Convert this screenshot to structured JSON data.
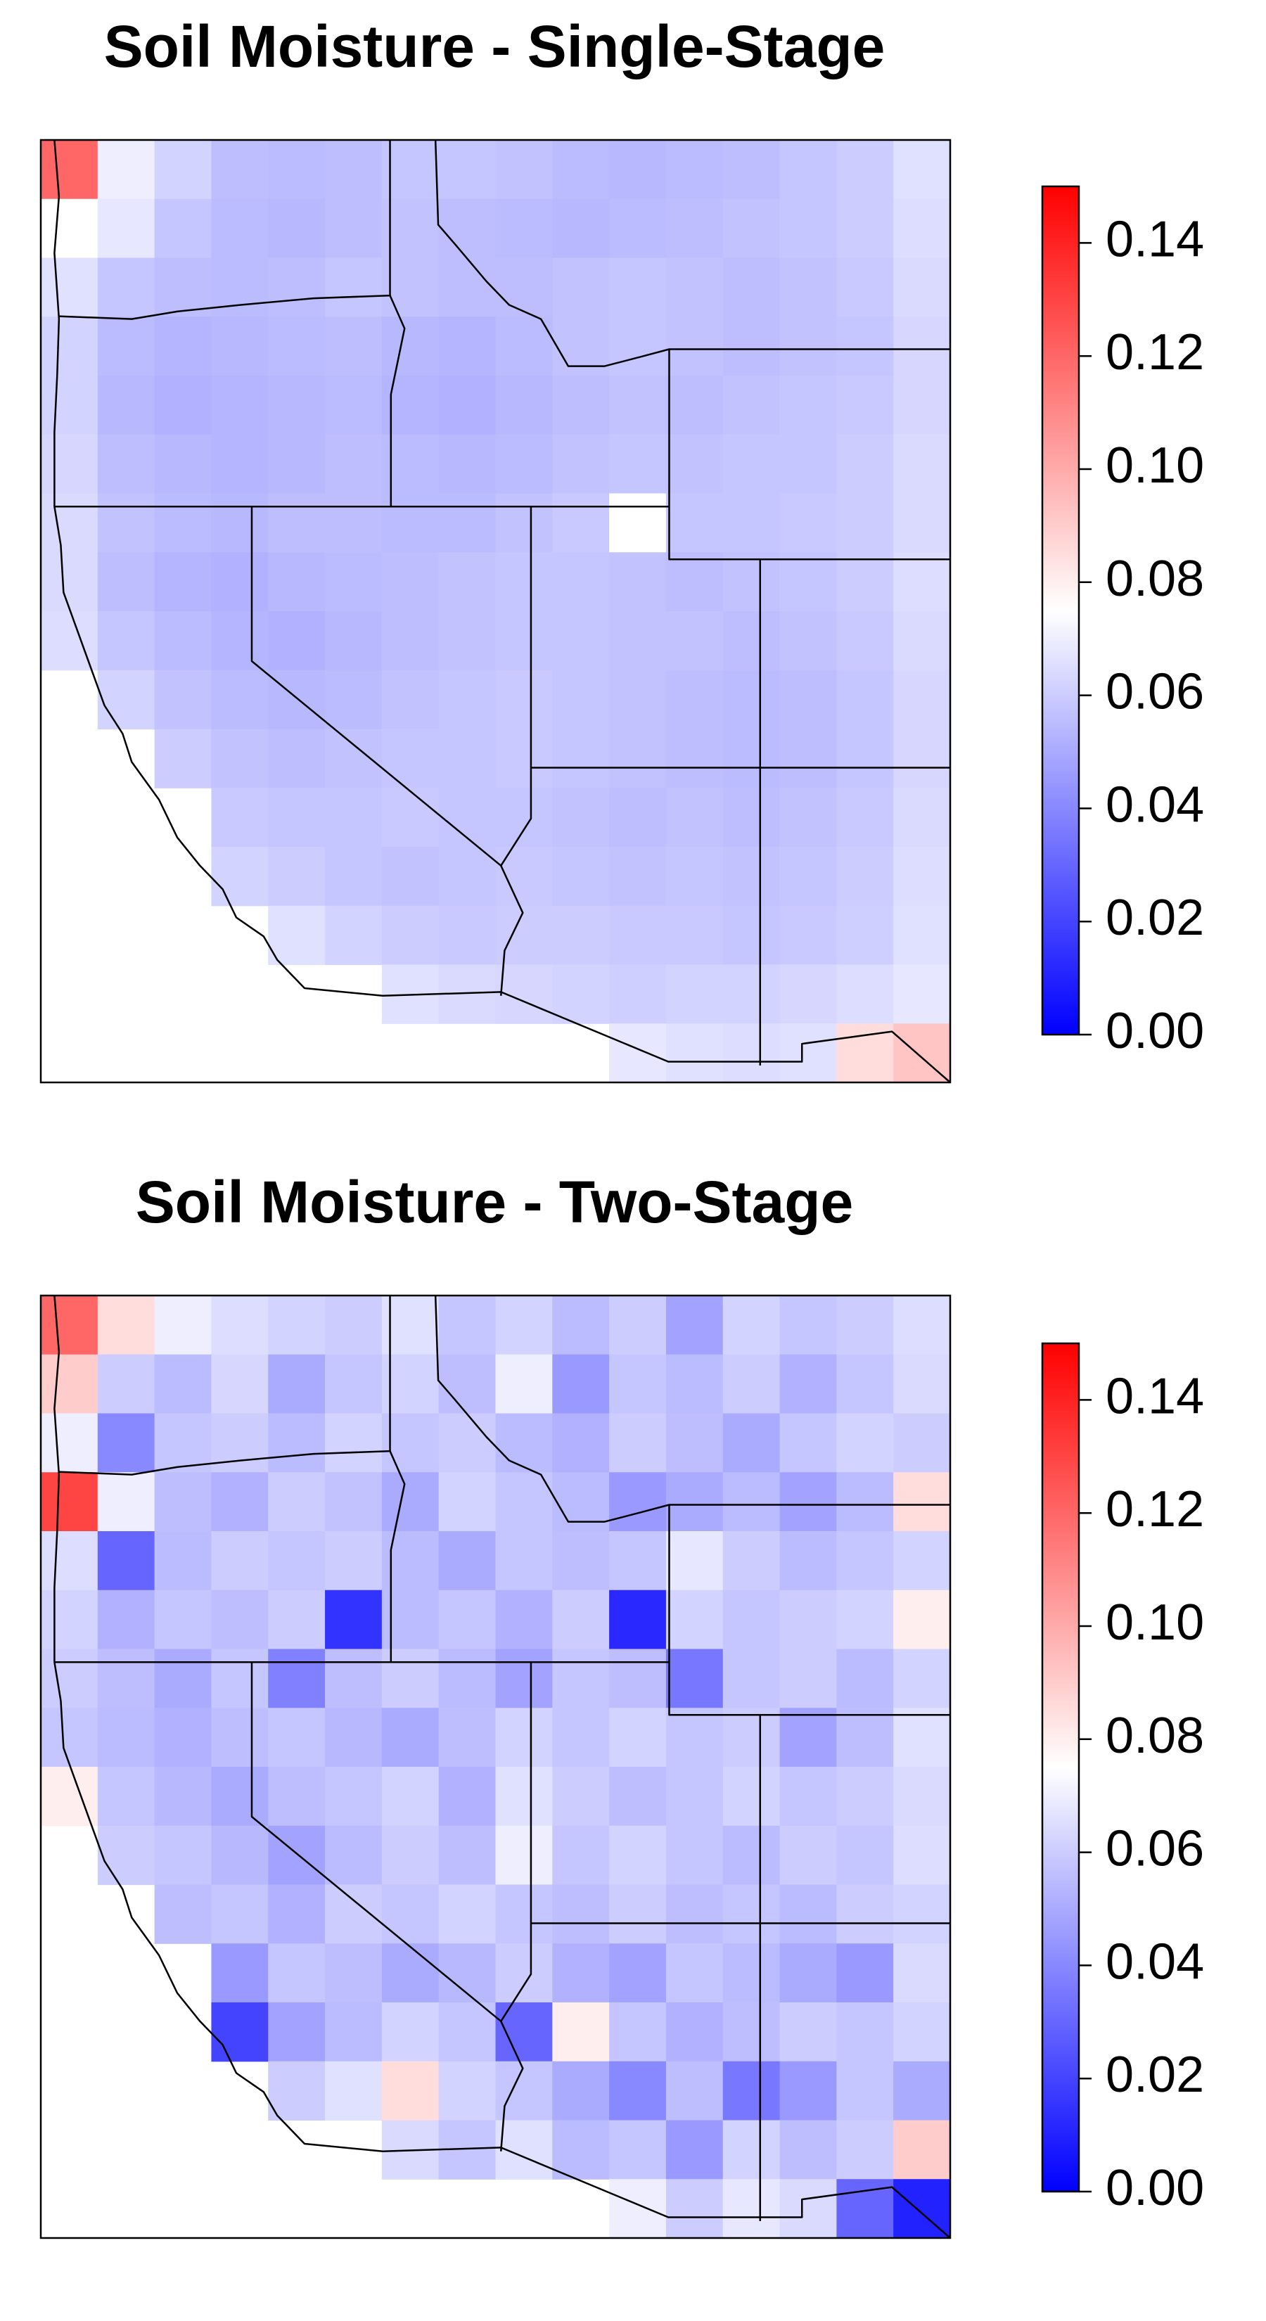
{
  "chart_data": [
    {
      "type": "heatmap",
      "title": "Soil Moisture - Single-Stage",
      "zlim": [
        0,
        0.15
      ],
      "colorscale": [
        "#0000ff",
        "#ffffff",
        "#ff0000"
      ],
      "zticks": [
        {
          "value": 0,
          "label": "0.00"
        },
        {
          "value": 0.02,
          "label": "0.02"
        },
        {
          "value": 0.04,
          "label": "0.04"
        },
        {
          "value": 0.06,
          "label": "0.06"
        },
        {
          "value": 0.08,
          "label": "0.08"
        },
        {
          "value": 0.1,
          "label": "0.10"
        },
        {
          "value": 0.12,
          "label": "0.12"
        },
        {
          "value": 0.14,
          "label": "0.14"
        }
      ],
      "z": [
        [
          0.12,
          0.07,
          0.062,
          0.056,
          0.055,
          0.056,
          0.058,
          0.058,
          0.057,
          0.055,
          0.054,
          0.055,
          0.056,
          0.058,
          0.06,
          0.066
        ],
        [
          0.075,
          0.068,
          0.058,
          0.055,
          0.054,
          0.056,
          0.057,
          0.056,
          0.055,
          0.054,
          0.055,
          0.056,
          0.057,
          0.058,
          0.06,
          0.065
        ],
        [
          0.066,
          0.058,
          0.056,
          0.055,
          0.056,
          0.058,
          0.057,
          0.056,
          0.056,
          0.057,
          0.058,
          0.057,
          0.056,
          0.057,
          0.059,
          0.064
        ],
        [
          0.062,
          0.055,
          0.053,
          0.054,
          0.055,
          0.056,
          0.054,
          0.053,
          0.055,
          0.057,
          0.058,
          0.057,
          0.056,
          0.057,
          0.058,
          0.063
        ],
        [
          0.062,
          0.054,
          0.052,
          0.053,
          0.054,
          0.055,
          0.053,
          0.052,
          0.054,
          0.056,
          0.057,
          0.056,
          0.057,
          0.058,
          0.059,
          0.063
        ],
        [
          0.063,
          0.056,
          0.054,
          0.053,
          0.054,
          0.056,
          0.055,
          0.054,
          0.055,
          0.057,
          0.058,
          0.057,
          0.058,
          0.058,
          0.06,
          0.064
        ],
        [
          0.064,
          0.057,
          0.055,
          0.054,
          0.056,
          0.056,
          0.055,
          0.055,
          0.057,
          0.059,
          0.075,
          0.058,
          0.058,
          0.059,
          0.06,
          0.064
        ],
        [
          0.064,
          0.056,
          0.053,
          0.052,
          0.054,
          0.055,
          0.056,
          0.057,
          0.058,
          0.058,
          0.057,
          0.056,
          0.057,
          0.058,
          0.06,
          0.065
        ],
        [
          0.065,
          0.058,
          0.055,
          0.053,
          0.052,
          0.054,
          0.056,
          0.057,
          0.058,
          0.058,
          0.057,
          0.057,
          0.056,
          0.057,
          0.059,
          0.064
        ],
        [
          null,
          0.062,
          0.057,
          0.055,
          0.054,
          0.055,
          0.057,
          0.058,
          0.059,
          0.058,
          0.057,
          0.056,
          0.055,
          0.056,
          0.058,
          0.063
        ],
        [
          null,
          null,
          0.06,
          0.057,
          0.056,
          0.057,
          0.058,
          0.058,
          0.059,
          0.058,
          0.057,
          0.056,
          0.055,
          0.056,
          0.058,
          0.063
        ],
        [
          null,
          null,
          null,
          0.059,
          0.058,
          0.058,
          0.059,
          0.058,
          0.058,
          0.057,
          0.056,
          0.057,
          0.056,
          0.057,
          0.059,
          0.064
        ],
        [
          null,
          null,
          null,
          0.062,
          0.06,
          0.058,
          0.057,
          0.058,
          0.059,
          0.058,
          0.057,
          0.058,
          0.057,
          0.058,
          0.06,
          0.065
        ],
        [
          null,
          null,
          null,
          null,
          0.066,
          0.062,
          0.06,
          0.059,
          0.06,
          0.06,
          0.059,
          0.059,
          0.058,
          0.059,
          0.061,
          0.066
        ],
        [
          null,
          null,
          null,
          null,
          null,
          null,
          0.066,
          0.064,
          0.063,
          0.062,
          0.061,
          0.062,
          0.062,
          0.063,
          0.065,
          0.068
        ],
        [
          null,
          null,
          null,
          null,
          null,
          null,
          null,
          null,
          null,
          null,
          0.068,
          0.066,
          0.065,
          0.066,
          0.085,
          0.092
        ]
      ]
    },
    {
      "type": "heatmap",
      "title": "Soil Moisture - Two-Stage",
      "zlim": [
        0,
        0.15
      ],
      "colorscale": [
        "#0000ff",
        "#ffffff",
        "#ff0000"
      ],
      "zticks": [
        {
          "value": 0,
          "label": "0.00"
        },
        {
          "value": 0.02,
          "label": "0.02"
        },
        {
          "value": 0.04,
          "label": "0.04"
        },
        {
          "value": 0.06,
          "label": "0.06"
        },
        {
          "value": 0.08,
          "label": "0.08"
        },
        {
          "value": 0.1,
          "label": "0.10"
        },
        {
          "value": 0.12,
          "label": "0.12"
        },
        {
          "value": 0.14,
          "label": "0.14"
        }
      ],
      "z": [
        [
          0.12,
          0.085,
          0.07,
          0.065,
          0.062,
          0.06,
          0.066,
          0.058,
          0.062,
          0.055,
          0.06,
          0.048,
          0.062,
          0.058,
          0.06,
          0.065
        ],
        [
          0.09,
          0.06,
          0.055,
          0.063,
          0.05,
          0.058,
          0.062,
          0.056,
          0.07,
          0.045,
          0.058,
          0.055,
          0.06,
          0.052,
          0.058,
          0.064
        ],
        [
          0.07,
          0.04,
          0.058,
          0.06,
          0.055,
          0.062,
          0.058,
          0.06,
          0.055,
          0.052,
          0.06,
          0.056,
          0.05,
          0.058,
          0.062,
          0.06
        ],
        [
          0.13,
          0.07,
          0.056,
          0.052,
          0.06,
          0.057,
          0.05,
          0.062,
          0.058,
          0.055,
          0.045,
          0.05,
          0.055,
          0.048,
          0.055,
          0.085
        ],
        [
          0.065,
          0.03,
          0.055,
          0.06,
          0.058,
          0.06,
          0.055,
          0.05,
          0.058,
          0.056,
          0.058,
          0.068,
          0.06,
          0.055,
          0.058,
          0.062
        ],
        [
          0.062,
          0.052,
          0.058,
          0.056,
          0.06,
          0.015,
          0.055,
          0.058,
          0.052,
          0.06,
          0.012,
          0.062,
          0.058,
          0.06,
          0.062,
          0.08
        ],
        [
          0.06,
          0.056,
          0.05,
          0.058,
          0.038,
          0.056,
          0.06,
          0.055,
          0.048,
          0.058,
          0.056,
          0.035,
          0.058,
          0.06,
          0.055,
          0.062
        ],
        [
          0.058,
          0.055,
          0.052,
          0.056,
          0.058,
          0.054,
          0.05,
          0.056,
          0.062,
          0.058,
          0.062,
          0.058,
          0.06,
          0.048,
          0.056,
          0.066
        ],
        [
          0.08,
          0.058,
          0.054,
          0.05,
          0.056,
          0.058,
          0.062,
          0.052,
          0.066,
          0.06,
          0.056,
          0.058,
          0.062,
          0.058,
          0.06,
          0.064
        ],
        [
          null,
          0.06,
          0.058,
          0.054,
          0.048,
          0.055,
          0.06,
          0.056,
          0.07,
          0.058,
          0.062,
          0.058,
          0.055,
          0.06,
          0.058,
          0.065
        ],
        [
          null,
          null,
          0.056,
          0.058,
          0.052,
          0.06,
          0.058,
          0.062,
          0.058,
          0.056,
          0.06,
          0.056,
          0.058,
          0.055,
          0.06,
          0.062
        ],
        [
          null,
          null,
          null,
          0.045,
          0.058,
          0.056,
          0.05,
          0.054,
          0.06,
          0.052,
          0.048,
          0.058,
          0.055,
          0.05,
          0.045,
          0.064
        ],
        [
          null,
          null,
          null,
          0.02,
          0.048,
          0.055,
          0.062,
          0.058,
          0.03,
          0.08,
          0.058,
          0.052,
          0.056,
          0.06,
          0.058,
          0.062
        ],
        [
          null,
          null,
          null,
          null,
          0.06,
          0.066,
          0.085,
          0.062,
          0.058,
          0.05,
          0.04,
          0.056,
          0.035,
          0.045,
          0.058,
          0.05
        ],
        [
          null,
          null,
          null,
          null,
          null,
          null,
          0.064,
          0.058,
          0.066,
          0.055,
          0.058,
          0.045,
          0.062,
          0.056,
          0.06,
          0.09
        ],
        [
          null,
          null,
          null,
          null,
          null,
          null,
          null,
          null,
          null,
          null,
          0.07,
          0.06,
          0.068,
          0.064,
          0.03,
          0.01
        ]
      ]
    }
  ]
}
